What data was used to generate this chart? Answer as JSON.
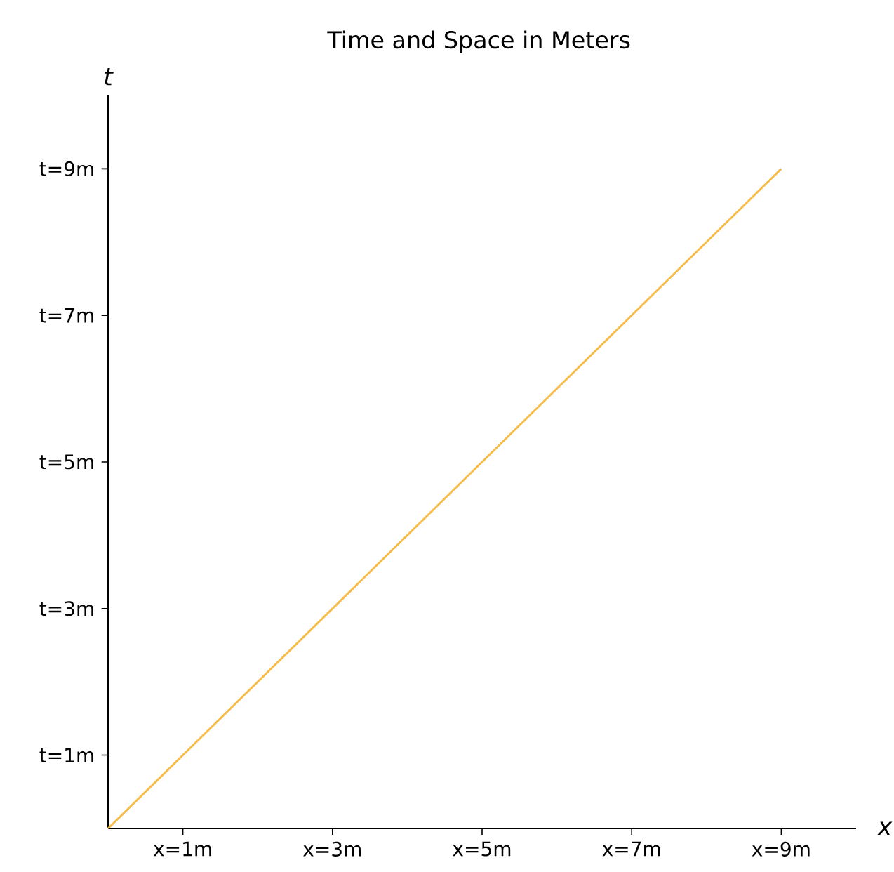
{
  "chart_data": {
    "type": "line",
    "title": "Time and Space in Meters",
    "xlabel": "x",
    "ylabel": "t",
    "x": [
      0,
      9
    ],
    "series": [
      {
        "color": "#f7bc48",
        "values": [
          0,
          9
        ]
      }
    ],
    "xlim": [
      0,
      10
    ],
    "ylim": [
      0,
      10
    ],
    "xticks": [
      {
        "value": 1,
        "label": "x=1m"
      },
      {
        "value": 3,
        "label": "x=3m"
      },
      {
        "value": 5,
        "label": "x=5m"
      },
      {
        "value": 7,
        "label": "x=7m"
      },
      {
        "value": 9,
        "label": "x=9m"
      }
    ],
    "yticks": [
      {
        "value": 1,
        "label": "t=1m"
      },
      {
        "value": 3,
        "label": "t=3m"
      },
      {
        "value": 5,
        "label": "t=5m"
      },
      {
        "value": 7,
        "label": "t=7m"
      },
      {
        "value": 9,
        "label": "t=9m"
      }
    ],
    "grid": false
  }
}
